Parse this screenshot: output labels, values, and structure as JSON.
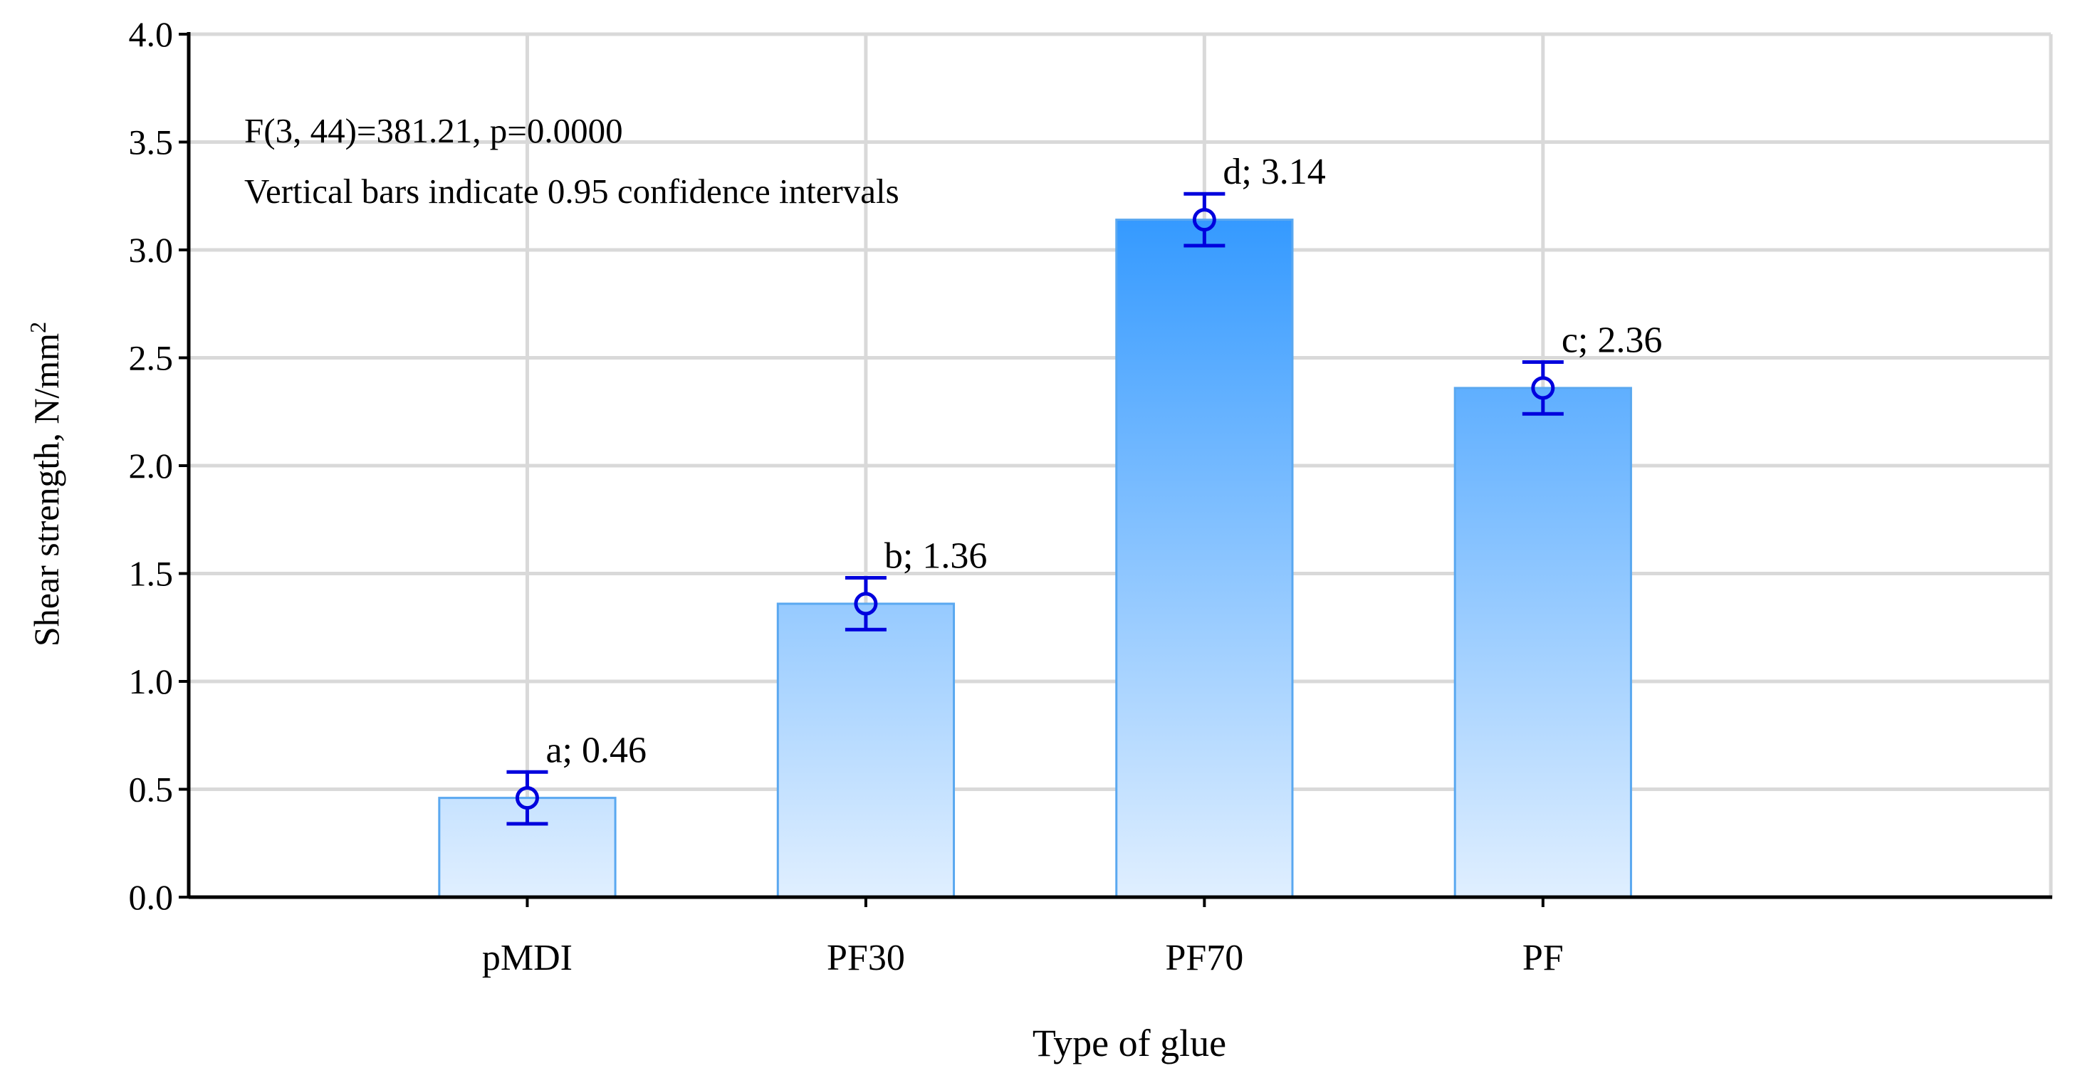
{
  "chart_data": {
    "type": "bar",
    "categories": [
      "pMDI",
      "PF30",
      "PF70",
      "PF"
    ],
    "values": [
      0.46,
      1.36,
      3.14,
      2.36
    ],
    "ci_lower": [
      0.34,
      1.24,
      3.02,
      2.24
    ],
    "ci_upper": [
      0.58,
      1.48,
      3.26,
      2.48
    ],
    "labels": [
      "a; 0.46",
      "b; 1.36",
      "d; 3.14",
      "c; 2.36"
    ],
    "title": "",
    "xlabel": "Type of glue",
    "ylabel_main": "Shear strength, N/mm",
    "ylabel_sup": "2",
    "ylim": [
      0,
      4.0
    ],
    "yticks": [
      "0.0",
      "0.5",
      "1.0",
      "1.5",
      "2.0",
      "2.5",
      "3.0",
      "3.5",
      "4.0"
    ],
    "grid": true,
    "annotations": [
      "F(3, 44)=381.21, p=0.0000",
      "Vertical bars indicate 0.95 confidence intervals"
    ],
    "colors": {
      "bar_top": "#3399ff",
      "bar_bottom": "#e0efff",
      "bar_stroke": "#5aa8f0",
      "errorbar": "#0000dd",
      "grid": "#d9d9d9",
      "axis": "#000000"
    }
  }
}
